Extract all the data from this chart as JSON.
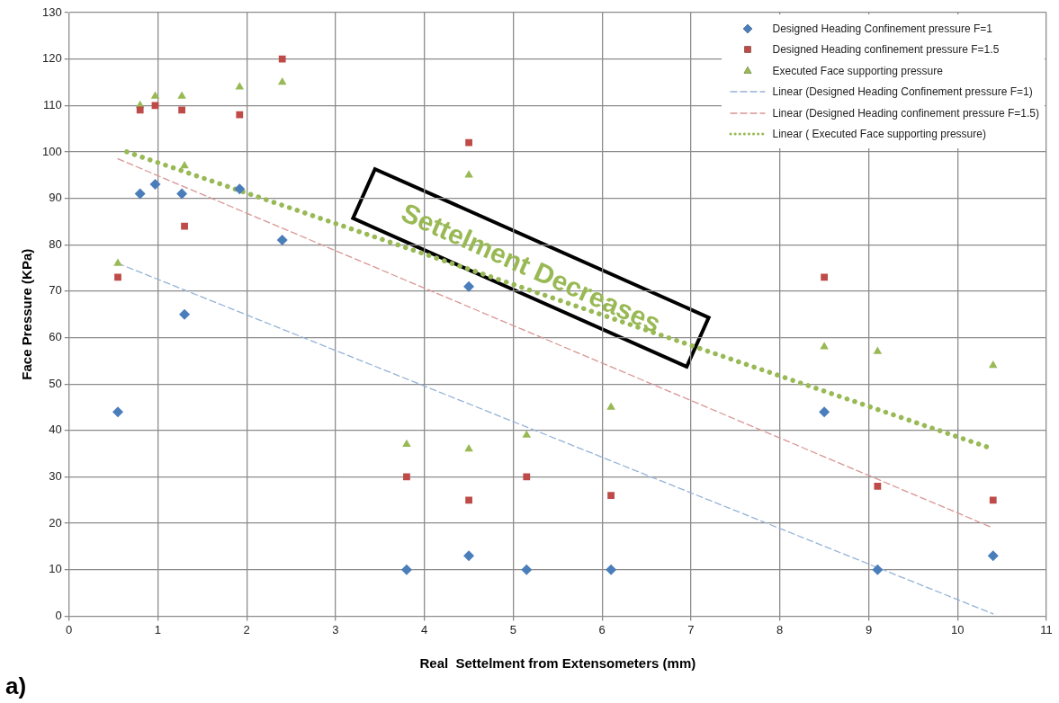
{
  "chart_data": {
    "type": "scatter",
    "xlabel": "Real  Settelment from Extensometers (mm)",
    "ylabel": "Face Pressure (KPa)",
    "xlim": [
      0,
      11
    ],
    "xticks": [
      0,
      1,
      2,
      3,
      4,
      5,
      6,
      7,
      8,
      9,
      10,
      11
    ],
    "ylim": [
      0,
      130
    ],
    "yticks": [
      0,
      10,
      20,
      30,
      40,
      50,
      60,
      70,
      80,
      90,
      100,
      110,
      120,
      130
    ],
    "grid": true,
    "legend": "top right",
    "annotations": [
      "Settelment Decreases",
      "a)"
    ],
    "series": [
      {
        "name": "Designed Heading Confinement pressure F=1",
        "color": "#4a7ebb",
        "marker": "diamond",
        "x": [
          0.55,
          0.8,
          0.97,
          1.27,
          1.3,
          1.92,
          2.4,
          3.8,
          4.5,
          4.5,
          5.15,
          6.1,
          8.5,
          9.1,
          10.4
        ],
        "values": [
          44,
          91,
          93,
          91,
          65,
          92,
          81,
          10,
          13,
          71,
          10,
          10,
          44,
          10,
          13
        ]
      },
      {
        "name": "Designed Heading confinement pressure F=1.5",
        "color": "#be4b48",
        "marker": "square",
        "x": [
          0.55,
          0.8,
          0.97,
          1.27,
          1.3,
          1.92,
          2.4,
          3.8,
          4.5,
          4.5,
          5.15,
          6.1,
          8.5,
          9.1,
          10.4
        ],
        "values": [
          73,
          109,
          110,
          109,
          84,
          108,
          120,
          30,
          25,
          102,
          30,
          26,
          73,
          28,
          25
        ]
      },
      {
        "name": " Executed Face supporting pressure",
        "color": "#98b954",
        "marker": "triangle",
        "x": [
          0.55,
          0.8,
          0.97,
          1.27,
          1.3,
          1.92,
          2.4,
          3.8,
          4.5,
          4.5,
          5.15,
          6.1,
          8.5,
          9.1,
          10.4
        ],
        "values": [
          76,
          110,
          112,
          112,
          97,
          114,
          115,
          37,
          36,
          95,
          39,
          45,
          58,
          57,
          54
        ]
      },
      {
        "name": "Linear (Designed Heading Confinement pressure F=1)",
        "type": "line",
        "color": "#95b3d7",
        "line_style": "dashed",
        "x": [
          0.55,
          10.4
        ],
        "values": [
          76,
          0.5
        ]
      },
      {
        "name": "Linear (Designed Heading confinement pressure F=1.5)",
        "type": "line",
        "color": "#d99694",
        "line_style": "dashed",
        "x": [
          0.55,
          10.4
        ],
        "values": [
          98.5,
          19
        ]
      },
      {
        "name": "Linear ( Executed Face supporting pressure)",
        "type": "line",
        "color": "#98b954",
        "line_style": "dotted",
        "x": [
          0.65,
          10.4
        ],
        "values": [
          100,
          36
        ]
      }
    ]
  }
}
